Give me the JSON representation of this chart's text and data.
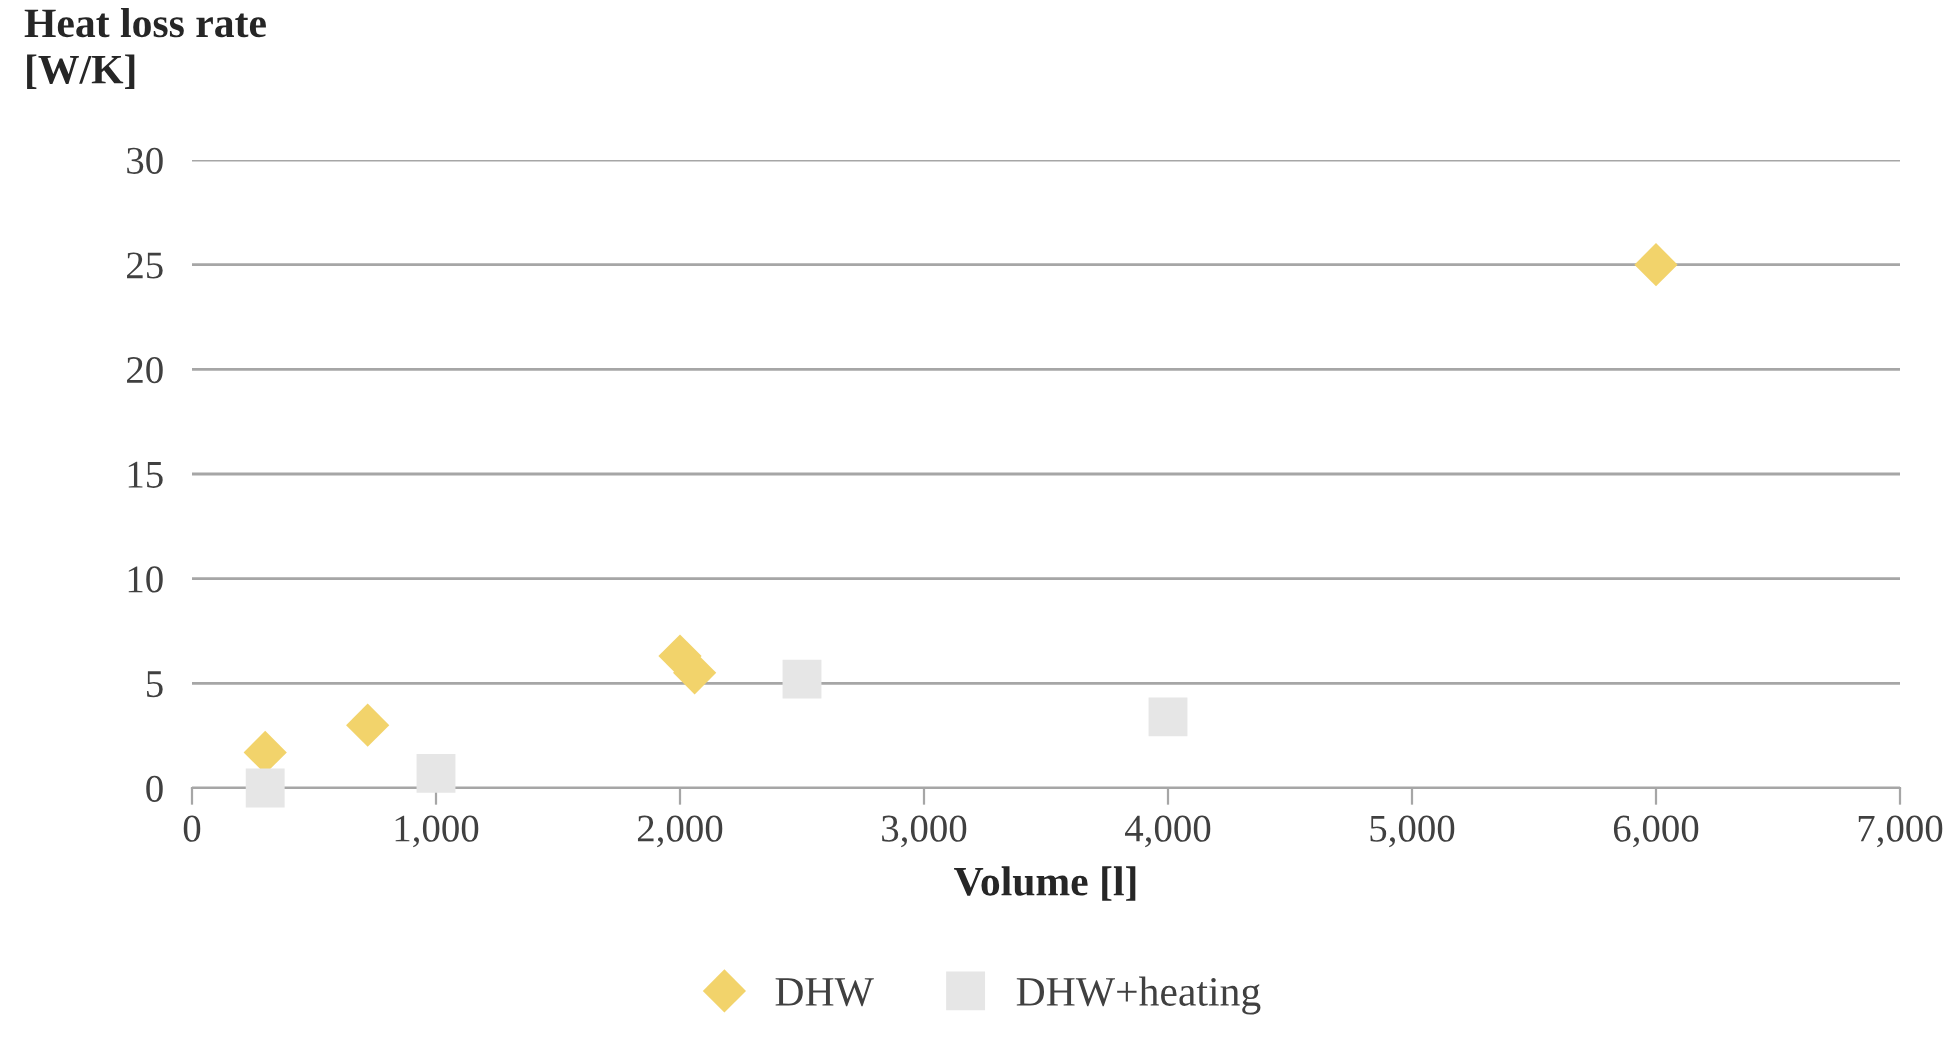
{
  "chart_data": {
    "type": "scatter",
    "ylabel": "Heat loss rate\n[W/K]",
    "xlabel": "Volume [l]",
    "series": [
      {
        "name": "DHW",
        "color": "#f2d36b",
        "marker": "diamond",
        "x": [
          300,
          720,
          2000,
          2060,
          6000
        ],
        "values": [
          1.7,
          3.0,
          6.3,
          5.5,
          25
        ]
      },
      {
        "name": "DHW+heating",
        "color": "#e6e6e6",
        "marker": "square",
        "x": [
          300,
          1000,
          2500,
          4000
        ],
        "values": [
          0,
          0.7,
          5.2,
          3.4
        ]
      }
    ],
    "xlim": [
      0,
      7000
    ],
    "xticks": [
      {
        "value": 0,
        "label": "0"
      },
      {
        "value": 1000,
        "label": "1,000"
      },
      {
        "value": 2000,
        "label": "2,000"
      },
      {
        "value": 3000,
        "label": "3,000"
      },
      {
        "value": 4000,
        "label": "4,000"
      },
      {
        "value": 5000,
        "label": "5,000"
      },
      {
        "value": 6000,
        "label": "6,000"
      },
      {
        "value": 7000,
        "label": "7,000"
      }
    ],
    "ylim": [
      0,
      30
    ],
    "yticks": [
      0,
      5,
      10,
      15,
      20,
      25,
      30
    ],
    "grid": "y",
    "legend": "bottom"
  }
}
